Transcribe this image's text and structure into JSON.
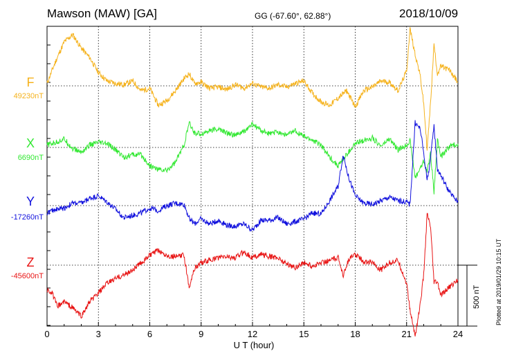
{
  "header": {
    "station": "Mawson (MAW)  [GA]",
    "coords": "GG (-67.60°,  62.88°)",
    "date": "2018/10/09"
  },
  "plotted_note": "Plotted at 2019/01/29 10:15 UT",
  "scale_bar_label": "500 nT",
  "colors": {
    "F": "#f5b21c",
    "X": "#33e833",
    "Y": "#1010dd",
    "Z": "#e81414",
    "grid": "#000000"
  },
  "chart_data": {
    "type": "line",
    "xlabel": "U T (hour)",
    "xlim": [
      0,
      24
    ],
    "xticks": [
      "0",
      "3",
      "6",
      "9",
      "12",
      "15",
      "18",
      "21",
      "24"
    ],
    "y_units": "nT",
    "scale_bar_nT": 500,
    "series": [
      {
        "name": "F",
        "baseline_label": "49230nT",
        "baseline": 49230,
        "x": [
          0,
          0.5,
          1,
          1.5,
          2,
          2.5,
          3,
          3.5,
          4,
          4.5,
          5,
          5.5,
          6,
          6.5,
          7,
          7.5,
          8,
          8.3,
          8.6,
          9,
          9.5,
          10,
          10.5,
          11,
          11.5,
          12,
          12.5,
          13,
          13.5,
          14,
          14.5,
          15,
          15.5,
          16,
          16.5,
          17,
          17.5,
          18,
          18.5,
          19,
          19.5,
          20,
          20.5,
          21,
          21.2,
          21.5,
          21.8,
          22,
          22.2,
          22.4,
          22.6,
          22.8,
          23,
          23.5,
          24
        ],
        "values": [
          20,
          200,
          360,
          420,
          310,
          230,
          110,
          40,
          20,
          10,
          40,
          -40,
          -20,
          -160,
          -120,
          -40,
          60,
          100,
          20,
          30,
          -20,
          -10,
          -30,
          10,
          -20,
          20,
          -10,
          -20,
          10,
          -10,
          20,
          40,
          -60,
          -130,
          -160,
          -100,
          -40,
          -170,
          -40,
          -10,
          40,
          30,
          -40,
          120,
          470,
          260,
          80,
          -150,
          -520,
          -140,
          340,
          100,
          160,
          130,
          30
        ]
      },
      {
        "name": "X",
        "baseline_label": "6690nT",
        "baseline": 6690,
        "x": [
          0,
          0.5,
          1,
          1.5,
          2,
          2.5,
          3,
          3.5,
          4,
          4.5,
          5,
          5.5,
          6,
          6.5,
          7,
          7.5,
          8,
          8.3,
          8.6,
          9,
          9.5,
          10,
          10.5,
          11,
          11.5,
          12,
          12.5,
          13,
          13.5,
          14,
          14.5,
          15,
          15.5,
          16,
          16.5,
          17,
          17.5,
          18,
          18.5,
          19,
          19.5,
          20,
          20.5,
          21,
          21.2,
          21.5,
          21.8,
          22,
          22.2,
          22.4,
          22.6,
          22.8,
          23,
          23.5,
          24
        ],
        "values": [
          20,
          40,
          70,
          -10,
          -40,
          20,
          40,
          30,
          -20,
          -80,
          -60,
          -60,
          -150,
          -180,
          -190,
          -120,
          20,
          200,
          120,
          110,
          140,
          150,
          120,
          100,
          130,
          190,
          140,
          110,
          130,
          100,
          140,
          90,
          60,
          20,
          -80,
          -150,
          -60,
          30,
          60,
          80,
          10,
          70,
          -20,
          20,
          60,
          -250,
          -170,
          -110,
          -200,
          -40,
          -370,
          70,
          -80,
          10,
          30
        ]
      },
      {
        "name": "Y",
        "baseline_label": "-17260nT",
        "baseline": -17260,
        "x": [
          0,
          0.5,
          1,
          1.5,
          2,
          2.5,
          3,
          3.5,
          4,
          4.5,
          5,
          5.5,
          6,
          6.5,
          7,
          7.5,
          8,
          8.3,
          8.6,
          9,
          9.5,
          10,
          10.5,
          11,
          11.5,
          12,
          12.5,
          13,
          13.5,
          14,
          14.5,
          15,
          15.5,
          16,
          16.5,
          17,
          17.3,
          17.6,
          18,
          18.5,
          19,
          19.5,
          20,
          20.5,
          21,
          21.2,
          21.5,
          21.8,
          22,
          22.2,
          22.4,
          22.6,
          22.8,
          23,
          23.5,
          24
        ],
        "values": [
          -60,
          -30,
          -20,
          20,
          20,
          60,
          80,
          30,
          -30,
          -100,
          -80,
          -60,
          -20,
          -40,
          0,
          20,
          10,
          -100,
          -150,
          -110,
          -150,
          -120,
          -160,
          -170,
          -150,
          -200,
          -120,
          -120,
          -100,
          -150,
          -130,
          -110,
          -60,
          -70,
          40,
          160,
          420,
          240,
          80,
          20,
          10,
          40,
          70,
          40,
          30,
          10,
          680,
          630,
          430,
          210,
          380,
          660,
          300,
          250,
          110,
          30
        ]
      },
      {
        "name": "Z",
        "baseline_label": "-45600nT",
        "baseline": -45600,
        "x": [
          0,
          0.3,
          0.6,
          1,
          1.5,
          2,
          2.5,
          3,
          3.5,
          4,
          4.5,
          5,
          5.5,
          6,
          6.5,
          7,
          7.5,
          8,
          8.3,
          8.6,
          9,
          9.5,
          10,
          10.5,
          11,
          11.5,
          12,
          12.5,
          13,
          13.5,
          14,
          14.5,
          15,
          15.5,
          16,
          16.5,
          17,
          17.3,
          17.6,
          18,
          18.5,
          19,
          19.5,
          20,
          20.5,
          21,
          21.2,
          21.5,
          21.8,
          22,
          22.2,
          22.4,
          22.6,
          22.8,
          23,
          23.5,
          24
        ],
        "values": [
          -200,
          -230,
          -340,
          -300,
          -350,
          -420,
          -300,
          -230,
          -150,
          -110,
          -80,
          -40,
          20,
          80,
          120,
          80,
          70,
          80,
          -180,
          -30,
          20,
          40,
          60,
          70,
          60,
          110,
          60,
          90,
          70,
          60,
          10,
          -20,
          20,
          -10,
          20,
          40,
          60,
          -80,
          40,
          90,
          30,
          20,
          -40,
          20,
          40,
          -150,
          -370,
          -580,
          -320,
          -80,
          420,
          310,
          -140,
          -140,
          -250,
          -180,
          -120
        ]
      }
    ]
  }
}
